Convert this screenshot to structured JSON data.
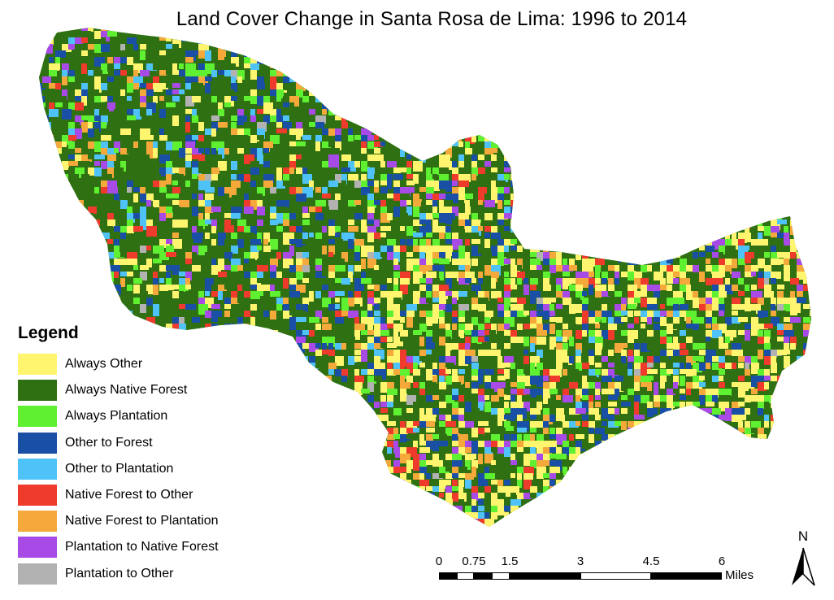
{
  "title": "Land Cover Change in Santa Rosa de Lima: 1996 to 2014",
  "legend": {
    "heading": "Legend",
    "items": [
      {
        "label": "Always Other",
        "color": "#FFF56E"
      },
      {
        "label": "Always Native Forest",
        "color": "#2E7012"
      },
      {
        "label": "Always Plantation",
        "color": "#5FF032"
      },
      {
        "label": "Other to Forest",
        "color": "#1A4FA6"
      },
      {
        "label": "Other to Plantation",
        "color": "#4FC3F7"
      },
      {
        "label": "Native Forest to Other",
        "color": "#EE3B2C"
      },
      {
        "label": "Native Forest to Plantation",
        "color": "#F5A93A"
      },
      {
        "label": "Plantation to Native Forest",
        "color": "#A84BE6"
      },
      {
        "label": "Plantation to Other",
        "color": "#B2B2B2"
      }
    ]
  },
  "scale_bar": {
    "ticks": [
      "0",
      "0.75",
      "1.5",
      "3",
      "4.5",
      "6"
    ],
    "units": "Miles"
  },
  "north_arrow": {
    "letter": "N"
  }
}
